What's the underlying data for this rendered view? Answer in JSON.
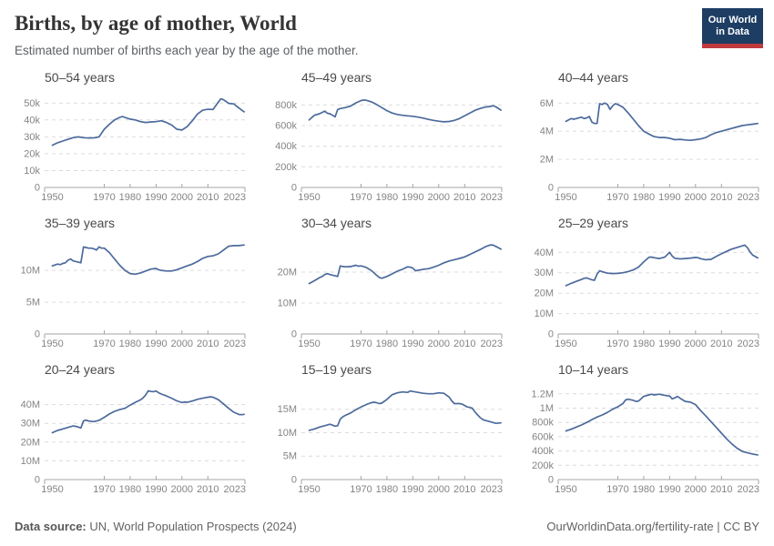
{
  "header": {
    "title": "Births, by age of mother, World",
    "subtitle": "Estimated number of births each year by the age of the mother.",
    "logo_line1": "Our World",
    "logo_line2": "in Data"
  },
  "footer": {
    "source_label": "Data source:",
    "source_text": " UN, World Population Prospects (2024)",
    "link": "OurWorldinData.org/fertility-rate",
    "separator": " | ",
    "license": "CC BY"
  },
  "colors": {
    "line": "#4c6a9c",
    "grid": "#dcdcdc",
    "axis": "#a5a5a5",
    "tick_label": "#848484",
    "logo_bg": "#1d3d63",
    "logo_red": "#c0393f"
  },
  "xdomain": [
    1947,
    2024.3
  ],
  "xticks": [
    {
      "v": 1950,
      "label": "1950"
    },
    {
      "v": 1970,
      "label": "1970"
    },
    {
      "v": 1980,
      "label": "1980"
    },
    {
      "v": 1990,
      "label": "1990"
    },
    {
      "v": 2000,
      "label": "2000"
    },
    {
      "v": 2010,
      "label": "2010"
    },
    {
      "v": 2023,
      "label": "2023"
    }
  ],
  "chart_data": [
    {
      "type": "line",
      "title": "50–54 years",
      "unit": "thousand births",
      "ylim": [
        0,
        55
      ],
      "yticks": [
        {
          "v": 0,
          "label": "0"
        },
        {
          "v": 10,
          "label": "10k"
        },
        {
          "v": 20,
          "label": "20k"
        },
        {
          "v": 30,
          "label": "30k"
        },
        {
          "v": 40,
          "label": "40k"
        },
        {
          "v": 50,
          "label": "50k"
        }
      ],
      "x": [
        1950,
        1952,
        1954,
        1956,
        1958,
        1960,
        1962,
        1964,
        1966,
        1968,
        1970,
        1972,
        1974,
        1976,
        1977,
        1978,
        1980,
        1982,
        1984,
        1986,
        1988,
        1990,
        1992,
        1994,
        1996,
        1998,
        2000,
        2002,
        2004,
        2006,
        2008,
        2010,
        2012,
        2014,
        2015,
        2016,
        2018,
        2020,
        2022,
        2024
      ],
      "values": [
        25,
        26.5,
        27.5,
        28.5,
        29.5,
        30,
        29.5,
        29.3,
        29.4,
        30,
        34.5,
        37.5,
        40,
        41.5,
        42,
        41.5,
        40.5,
        40,
        39,
        38.5,
        38.8,
        39,
        39.5,
        38.5,
        37,
        34.5,
        34,
        36,
        39.5,
        43.5,
        45.8,
        46.3,
        46.2,
        50.5,
        52.5,
        52,
        49.8,
        49.5,
        47,
        44.8
      ]
    },
    {
      "type": "line",
      "title": "45–49 years",
      "unit": "thousand births",
      "ylim": [
        0,
        900
      ],
      "yticks": [
        {
          "v": 0,
          "label": "0"
        },
        {
          "v": 200,
          "label": "200k"
        },
        {
          "v": 400,
          "label": "400k"
        },
        {
          "v": 600,
          "label": "600k"
        },
        {
          "v": 800,
          "label": "800k"
        }
      ],
      "x": [
        1950,
        1952,
        1954,
        1956,
        1957,
        1958,
        1959,
        1960,
        1961,
        1962,
        1964,
        1966,
        1968,
        1970,
        1971,
        1972,
        1974,
        1976,
        1978,
        1980,
        1982,
        1984,
        1986,
        1988,
        1990,
        1992,
        1994,
        1996,
        1998,
        2000,
        2002,
        2004,
        2006,
        2008,
        2010,
        2012,
        2014,
        2016,
        2018,
        2020,
        2021,
        2022,
        2024
      ],
      "values": [
        655,
        700,
        715,
        740,
        720,
        715,
        700,
        685,
        755,
        765,
        775,
        790,
        820,
        843,
        848,
        845,
        830,
        805,
        775,
        745,
        722,
        708,
        700,
        694,
        690,
        682,
        672,
        660,
        650,
        642,
        636,
        640,
        650,
        668,
        695,
        722,
        748,
        766,
        780,
        786,
        792,
        782,
        750
      ]
    },
    {
      "type": "line",
      "title": "40–44 years",
      "unit": "million births",
      "ylim": [
        0,
        6.6
      ],
      "yticks": [
        {
          "v": 0,
          "label": "0"
        },
        {
          "v": 2,
          "label": "2M"
        },
        {
          "v": 4,
          "label": "4M"
        },
        {
          "v": 6,
          "label": "6M"
        }
      ],
      "x": [
        1950,
        1952,
        1953,
        1954,
        1956,
        1957,
        1958,
        1959,
        1960,
        1961,
        1962,
        1963,
        1964,
        1965,
        1966,
        1967,
        1968,
        1969,
        1970,
        1971,
        1972,
        1974,
        1976,
        1978,
        1980,
        1982,
        1984,
        1986,
        1988,
        1990,
        1992,
        1994,
        1996,
        1998,
        2000,
        2002,
        2004,
        2006,
        2008,
        2010,
        2012,
        2014,
        2016,
        2018,
        2020,
        2022,
        2024
      ],
      "values": [
        4.7,
        4.9,
        4.85,
        4.9,
        5.0,
        4.9,
        4.95,
        5.05,
        4.65,
        4.55,
        4.55,
        5.95,
        5.9,
        6.0,
        5.9,
        5.55,
        5.8,
        5.95,
        5.9,
        5.8,
        5.7,
        5.3,
        4.85,
        4.4,
        4.0,
        3.8,
        3.62,
        3.55,
        3.55,
        3.5,
        3.4,
        3.42,
        3.38,
        3.35,
        3.4,
        3.45,
        3.55,
        3.75,
        3.9,
        4.0,
        4.1,
        4.2,
        4.3,
        4.4,
        4.45,
        4.5,
        4.55
      ]
    },
    {
      "type": "line",
      "title": "35–39 years",
      "unit": "million births",
      "ylim": [
        0,
        14.6
      ],
      "yticks": [
        {
          "v": 0,
          "label": "0"
        },
        {
          "v": 5,
          "label": "5M"
        },
        {
          "v": 10,
          "label": "10M"
        }
      ],
      "x": [
        1950,
        1952,
        1953,
        1954,
        1955,
        1956,
        1957,
        1958,
        1960,
        1961,
        1962,
        1963,
        1964,
        1965,
        1966,
        1967,
        1968,
        1969,
        1970,
        1972,
        1974,
        1976,
        1978,
        1980,
        1982,
        1984,
        1986,
        1988,
        1990,
        1991,
        1992,
        1994,
        1996,
        1998,
        2000,
        2002,
        2004,
        2006,
        2008,
        2010,
        2012,
        2014,
        2016,
        2018,
        2020,
        2022,
        2024
      ],
      "values": [
        10.7,
        11.0,
        10.9,
        11.1,
        11.2,
        11.6,
        11.8,
        11.5,
        11.3,
        11.2,
        13.7,
        13.6,
        13.5,
        13.5,
        13.4,
        13.2,
        13.7,
        13.5,
        13.5,
        12.8,
        11.8,
        10.8,
        10.0,
        9.5,
        9.4,
        9.6,
        9.9,
        10.2,
        10.3,
        10.1,
        10.0,
        9.9,
        9.9,
        10.1,
        10.4,
        10.7,
        11.0,
        11.4,
        11.9,
        12.2,
        12.3,
        12.6,
        13.2,
        13.8,
        13.9,
        13.9,
        14.0
      ]
    },
    {
      "type": "line",
      "title": "30–34 years",
      "unit": "million births",
      "ylim": [
        0,
        30
      ],
      "yticks": [
        {
          "v": 0,
          "label": "0"
        },
        {
          "v": 10,
          "label": "10M"
        },
        {
          "v": 20,
          "label": "20M"
        }
      ],
      "x": [
        1950,
        1952,
        1954,
        1955,
        1956,
        1957,
        1958,
        1960,
        1961,
        1962,
        1963,
        1964,
        1966,
        1968,
        1969,
        1970,
        1971,
        1972,
        1974,
        1976,
        1977,
        1978,
        1980,
        1982,
        1984,
        1986,
        1988,
        1989,
        1990,
        1991,
        1992,
        1994,
        1996,
        1998,
        2000,
        2002,
        2004,
        2006,
        2008,
        2010,
        2012,
        2014,
        2016,
        2018,
        2020,
        2021,
        2022,
        2024
      ],
      "values": [
        16.3,
        17.2,
        18.2,
        18.6,
        19.2,
        19.5,
        19.2,
        18.8,
        18.6,
        22.0,
        21.8,
        21.7,
        21.8,
        22.2,
        21.9,
        22.0,
        21.8,
        21.5,
        20.5,
        19.0,
        18.3,
        18.0,
        18.6,
        19.4,
        20.3,
        20.9,
        21.7,
        21.6,
        21.3,
        20.4,
        20.6,
        20.9,
        21.1,
        21.6,
        22.2,
        23.0,
        23.6,
        24.0,
        24.4,
        24.9,
        25.7,
        26.5,
        27.3,
        28.2,
        28.8,
        28.7,
        28.3,
        27.4
      ]
    },
    {
      "type": "line",
      "title": "25–29 years",
      "unit": "million births",
      "ylim": [
        0,
        45.5
      ],
      "yticks": [
        {
          "v": 0,
          "label": "0"
        },
        {
          "v": 10,
          "label": "10M"
        },
        {
          "v": 20,
          "label": "20M"
        },
        {
          "v": 30,
          "label": "30M"
        },
        {
          "v": 40,
          "label": "40M"
        }
      ],
      "x": [
        1950,
        1952,
        1954,
        1956,
        1957,
        1958,
        1959,
        1960,
        1961,
        1962,
        1963,
        1964,
        1966,
        1968,
        1970,
        1972,
        1974,
        1976,
        1978,
        1980,
        1982,
        1983,
        1984,
        1986,
        1988,
        1989,
        1990,
        1991,
        1992,
        1994,
        1996,
        1998,
        2000,
        2001,
        2002,
        2004,
        2006,
        2008,
        2010,
        2012,
        2014,
        2016,
        2018,
        2019,
        2020,
        2021,
        2022,
        2024
      ],
      "values": [
        23.7,
        24.8,
        25.8,
        26.7,
        27.3,
        27.5,
        27.0,
        26.6,
        26.3,
        29.3,
        31.0,
        30.5,
        29.8,
        29.6,
        29.7,
        30.0,
        30.6,
        31.4,
        32.8,
        35.3,
        37.6,
        37.7,
        37.4,
        37.0,
        37.6,
        38.7,
        40.0,
        38.2,
        37.1,
        36.8,
        37.0,
        37.2,
        37.5,
        37.4,
        36.9,
        36.4,
        36.6,
        38.0,
        39.3,
        40.5,
        41.6,
        42.4,
        43.2,
        43.6,
        42.3,
        40.3,
        38.7,
        37.3
      ]
    },
    {
      "type": "line",
      "title": "20–24 years",
      "unit": "million births",
      "ylim": [
        0,
        49.5
      ],
      "yticks": [
        {
          "v": 0,
          "label": "0"
        },
        {
          "v": 10,
          "label": "10M"
        },
        {
          "v": 20,
          "label": "20M"
        },
        {
          "v": 30,
          "label": "30M"
        },
        {
          "v": 40,
          "label": "40M"
        }
      ],
      "x": [
        1950,
        1952,
        1954,
        1956,
        1958,
        1959,
        1960,
        1961,
        1962,
        1963,
        1964,
        1966,
        1968,
        1970,
        1972,
        1974,
        1976,
        1978,
        1980,
        1982,
        1984,
        1985,
        1986,
        1987,
        1988,
        1989,
        1990,
        1991,
        1992,
        1994,
        1996,
        1998,
        2000,
        2001,
        2002,
        2004,
        2006,
        2008,
        2010,
        2011,
        2012,
        2014,
        2016,
        2018,
        2020,
        2022,
        2023,
        2024
      ],
      "values": [
        25.0,
        26.2,
        27.0,
        27.8,
        28.6,
        28.4,
        28.0,
        27.5,
        31.3,
        31.7,
        31.2,
        30.9,
        31.6,
        33.2,
        35.0,
        36.4,
        37.3,
        38.0,
        39.7,
        41.2,
        42.5,
        43.6,
        45.2,
        47.3,
        47.0,
        46.9,
        47.2,
        46.3,
        45.6,
        44.6,
        43.4,
        42.0,
        41.1,
        41.3,
        41.2,
        41.9,
        42.8,
        43.4,
        43.9,
        44.1,
        43.9,
        42.6,
        40.4,
        38.0,
        35.9,
        34.7,
        34.6,
        34.8
      ]
    },
    {
      "type": "line",
      "title": "15–19 years",
      "unit": "million births",
      "ylim": [
        0,
        19.8
      ],
      "yticks": [
        {
          "v": 0,
          "label": "0"
        },
        {
          "v": 5,
          "label": "5M"
        },
        {
          "v": 10,
          "label": "10M"
        },
        {
          "v": 15,
          "label": "15M"
        }
      ],
      "x": [
        1950,
        1952,
        1954,
        1956,
        1958,
        1959,
        1960,
        1961,
        1962,
        1963,
        1964,
        1966,
        1968,
        1970,
        1972,
        1974,
        1975,
        1976,
        1977,
        1978,
        1980,
        1982,
        1984,
        1986,
        1988,
        1989,
        1990,
        1992,
        1994,
        1996,
        1998,
        2000,
        2002,
        2004,
        2005,
        2006,
        2008,
        2009,
        2010,
        2011,
        2012,
        2013,
        2014,
        2015,
        2016,
        2017,
        2018,
        2020,
        2022,
        2024
      ],
      "values": [
        10.5,
        10.8,
        11.2,
        11.5,
        11.8,
        11.6,
        11.4,
        11.5,
        12.9,
        13.4,
        13.7,
        14.2,
        14.9,
        15.5,
        16.0,
        16.4,
        16.5,
        16.4,
        16.2,
        16.3,
        17.1,
        18.1,
        18.5,
        18.7,
        18.6,
        18.9,
        18.8,
        18.6,
        18.4,
        18.3,
        18.3,
        18.5,
        18.4,
        17.6,
        16.8,
        16.2,
        16.2,
        16.1,
        15.8,
        15.5,
        15.4,
        15.2,
        14.4,
        13.8,
        13.2,
        12.8,
        12.6,
        12.3,
        12.0,
        12.1
      ]
    },
    {
      "type": "line",
      "title": "10–14 years",
      "unit": "thousand births",
      "ylim": [
        0,
        1300
      ],
      "yticks": [
        {
          "v": 0,
          "label": "0"
        },
        {
          "v": 200,
          "label": "200k"
        },
        {
          "v": 400,
          "label": "400k"
        },
        {
          "v": 600,
          "label": "600k"
        },
        {
          "v": 800,
          "label": "800k"
        },
        {
          "v": 1000,
          "label": "1M"
        },
        {
          "v": 1200,
          "label": "1.2M"
        }
      ],
      "x": [
        1950,
        1952,
        1954,
        1956,
        1958,
        1960,
        1962,
        1964,
        1966,
        1968,
        1970,
        1972,
        1973,
        1974,
        1976,
        1977,
        1978,
        1980,
        1982,
        1983,
        1984,
        1986,
        1988,
        1990,
        1991,
        1992,
        1993,
        1994,
        1996,
        1998,
        2000,
        2002,
        2004,
        2006,
        2008,
        2010,
        2012,
        2014,
        2016,
        2018,
        2020,
        2022,
        2024
      ],
      "values": [
        680,
        705,
        735,
        765,
        800,
        840,
        875,
        905,
        940,
        985,
        1020,
        1065,
        1115,
        1125,
        1110,
        1095,
        1100,
        1165,
        1185,
        1195,
        1185,
        1195,
        1180,
        1170,
        1130,
        1145,
        1165,
        1140,
        1095,
        1085,
        1050,
        965,
        890,
        810,
        730,
        650,
        570,
        500,
        440,
        395,
        375,
        358,
        345
      ]
    }
  ]
}
